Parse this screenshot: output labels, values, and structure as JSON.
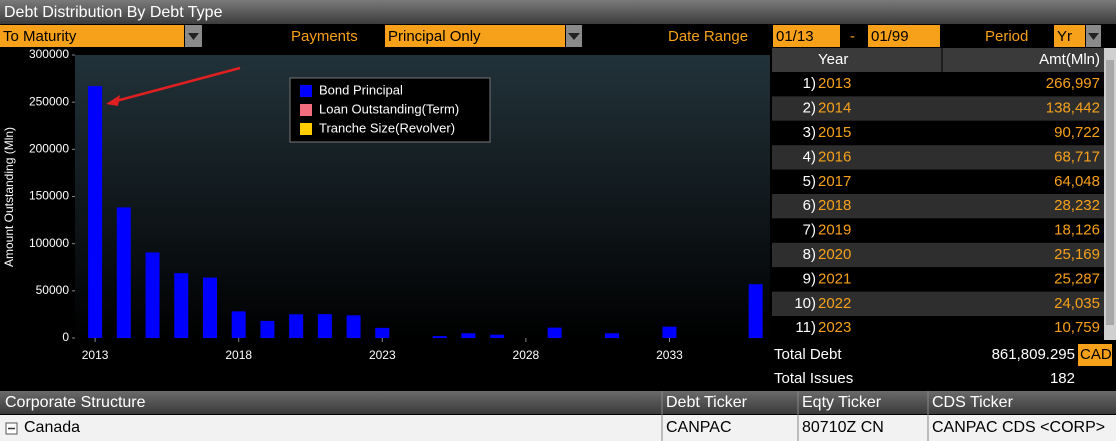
{
  "header": {
    "title": "Debt Distribution By Debt Type"
  },
  "controls": {
    "mode": "To Maturity",
    "payments_label": "Payments",
    "payments": "Principal Only",
    "date_range_label": "Date Range",
    "date_from": "01/13",
    "date_sep": "-",
    "date_to": "01/99",
    "period_label": "Period",
    "period": "Yr"
  },
  "chart_data": {
    "type": "bar",
    "y_label": "Amount Outstanding (Mln)",
    "x": [
      2013,
      2014,
      2015,
      2016,
      2017,
      2018,
      2019,
      2020,
      2021,
      2022,
      2023,
      2024,
      2025,
      2026,
      2027,
      2028,
      2029,
      2030,
      2031,
      2032,
      2033,
      2034,
      2035,
      2036
    ],
    "series": [
      {
        "name": "Bond Principal",
        "color": "#0000ff",
        "values": [
          266997,
          138442,
          90722,
          68717,
          64048,
          28232,
          18126,
          25169,
          25287,
          24035,
          10759,
          0,
          2000,
          5000,
          3500,
          0,
          11000,
          0,
          5000,
          0,
          12000,
          0,
          0,
          57000
        ]
      }
    ],
    "legend": [
      {
        "name": "Bond Principal",
        "color": "#0000ff"
      },
      {
        "name": "Loan Outstanding(Term)",
        "color": "#f26d7d"
      },
      {
        "name": "Tranche Size(Revolver)",
        "color": "#ffcc00"
      }
    ],
    "xlim": [
      2012.3,
      2036.5
    ],
    "xticks": [
      2013,
      2018,
      2023,
      2028,
      2033
    ],
    "ylim": [
      0,
      300000
    ],
    "yticks": [
      0,
      50000,
      100000,
      150000,
      200000,
      250000,
      300000
    ],
    "grid": false
  },
  "table": {
    "columns": [
      "Year",
      "Amt(Mln)"
    ],
    "rows": [
      [
        "1)",
        "2013",
        "266,997"
      ],
      [
        "2)",
        "2014",
        "138,442"
      ],
      [
        "3)",
        "2015",
        "90,722"
      ],
      [
        "4)",
        "2016",
        "68,717"
      ],
      [
        "5)",
        "2017",
        "64,048"
      ],
      [
        "6)",
        "2018",
        "28,232"
      ],
      [
        "7)",
        "2019",
        "18,126"
      ],
      [
        "8)",
        "2020",
        "25,169"
      ],
      [
        "9)",
        "2021",
        "25,287"
      ],
      [
        "10)",
        "2022",
        "24,035"
      ],
      [
        "11)",
        "2023",
        "10,759"
      ]
    ]
  },
  "totals": {
    "debt_label": "Total Debt",
    "debt": "861,809.295",
    "currency": "CAD",
    "issues_label": "Total Issues",
    "issues": "182"
  },
  "structure": {
    "columns": [
      "Corporate Structure",
      "Debt Ticker",
      "Eqty Ticker",
      "CDS Ticker"
    ],
    "rows": [
      [
        "Canada",
        "CANPAC",
        "80710Z CN",
        "CANPAC CDS <CORP>"
      ]
    ]
  }
}
